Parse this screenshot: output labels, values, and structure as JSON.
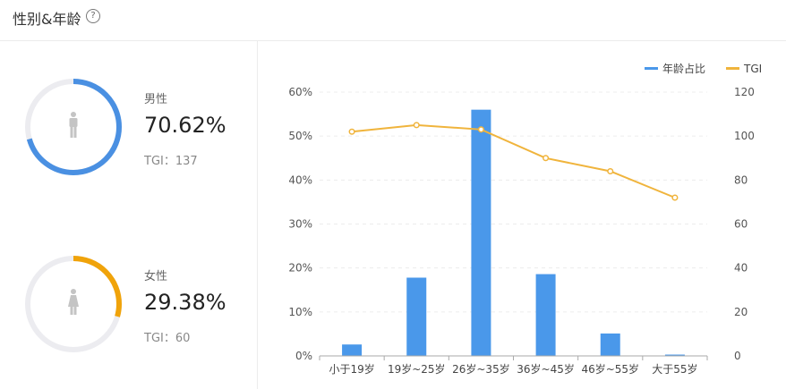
{
  "header": {
    "title": "性别&年龄",
    "help_icon": "question-circle-icon"
  },
  "gender": [
    {
      "label": "男性",
      "percent": "70.62%",
      "tgi": "TGI：137",
      "ratio": 0.7062,
      "color": "#4a90e2",
      "icon": "male-person-icon"
    },
    {
      "label": "女性",
      "percent": "29.38%",
      "tgi": "TGI：60",
      "ratio": 0.2938,
      "color": "#f0a30a",
      "icon": "female-person-icon"
    }
  ],
  "colors": {
    "bar": "#4a98ea",
    "line": "#f0b43c",
    "ring_track": "#ececf0",
    "person": "#c4c4c4"
  },
  "chart_data": {
    "type": "bar",
    "categories": [
      "小于19岁",
      "19岁~25岁",
      "26岁~35岁",
      "36岁~45岁",
      "46岁~55岁",
      "大于55岁"
    ],
    "series": [
      {
        "name": "年龄占比",
        "type": "bar",
        "axis": "left",
        "values": [
          2.6,
          17.8,
          56.0,
          18.6,
          5.1,
          0.3
        ]
      },
      {
        "name": "TGI",
        "type": "line",
        "axis": "right",
        "values": [
          102,
          105,
          103,
          90,
          84,
          72
        ]
      }
    ],
    "y_left": {
      "ticks": [
        "0%",
        "10%",
        "20%",
        "30%",
        "40%",
        "50%",
        "60%"
      ],
      "range": [
        0,
        60
      ]
    },
    "y_right": {
      "ticks": [
        "0",
        "20",
        "40",
        "60",
        "80",
        "100",
        "120"
      ],
      "range": [
        0,
        120
      ]
    },
    "legend_position": "top-right",
    "grid": true
  }
}
